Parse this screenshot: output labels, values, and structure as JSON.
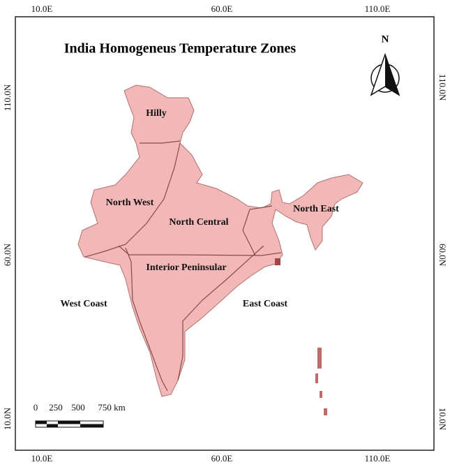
{
  "title": "India Homogeneus Temperature Zones",
  "north_arrow": "N",
  "grid_labels": {
    "top": [
      "10.0E",
      "60.0E",
      "110.0E"
    ],
    "bottom": [
      "10.0E",
      "60.0E",
      "110.0E"
    ],
    "left": [
      "110.0N",
      "60.0N",
      "10.0N"
    ],
    "right": [
      "110.0N",
      "60.0N",
      "10.0N"
    ]
  },
  "zones": [
    "Hilly",
    "North West",
    "North Central",
    "North East",
    "Interior Peninsular",
    "West Coast",
    "East Coast"
  ],
  "scale_bar": {
    "labels": [
      "0",
      "250",
      "500",
      "750 km"
    ]
  }
}
